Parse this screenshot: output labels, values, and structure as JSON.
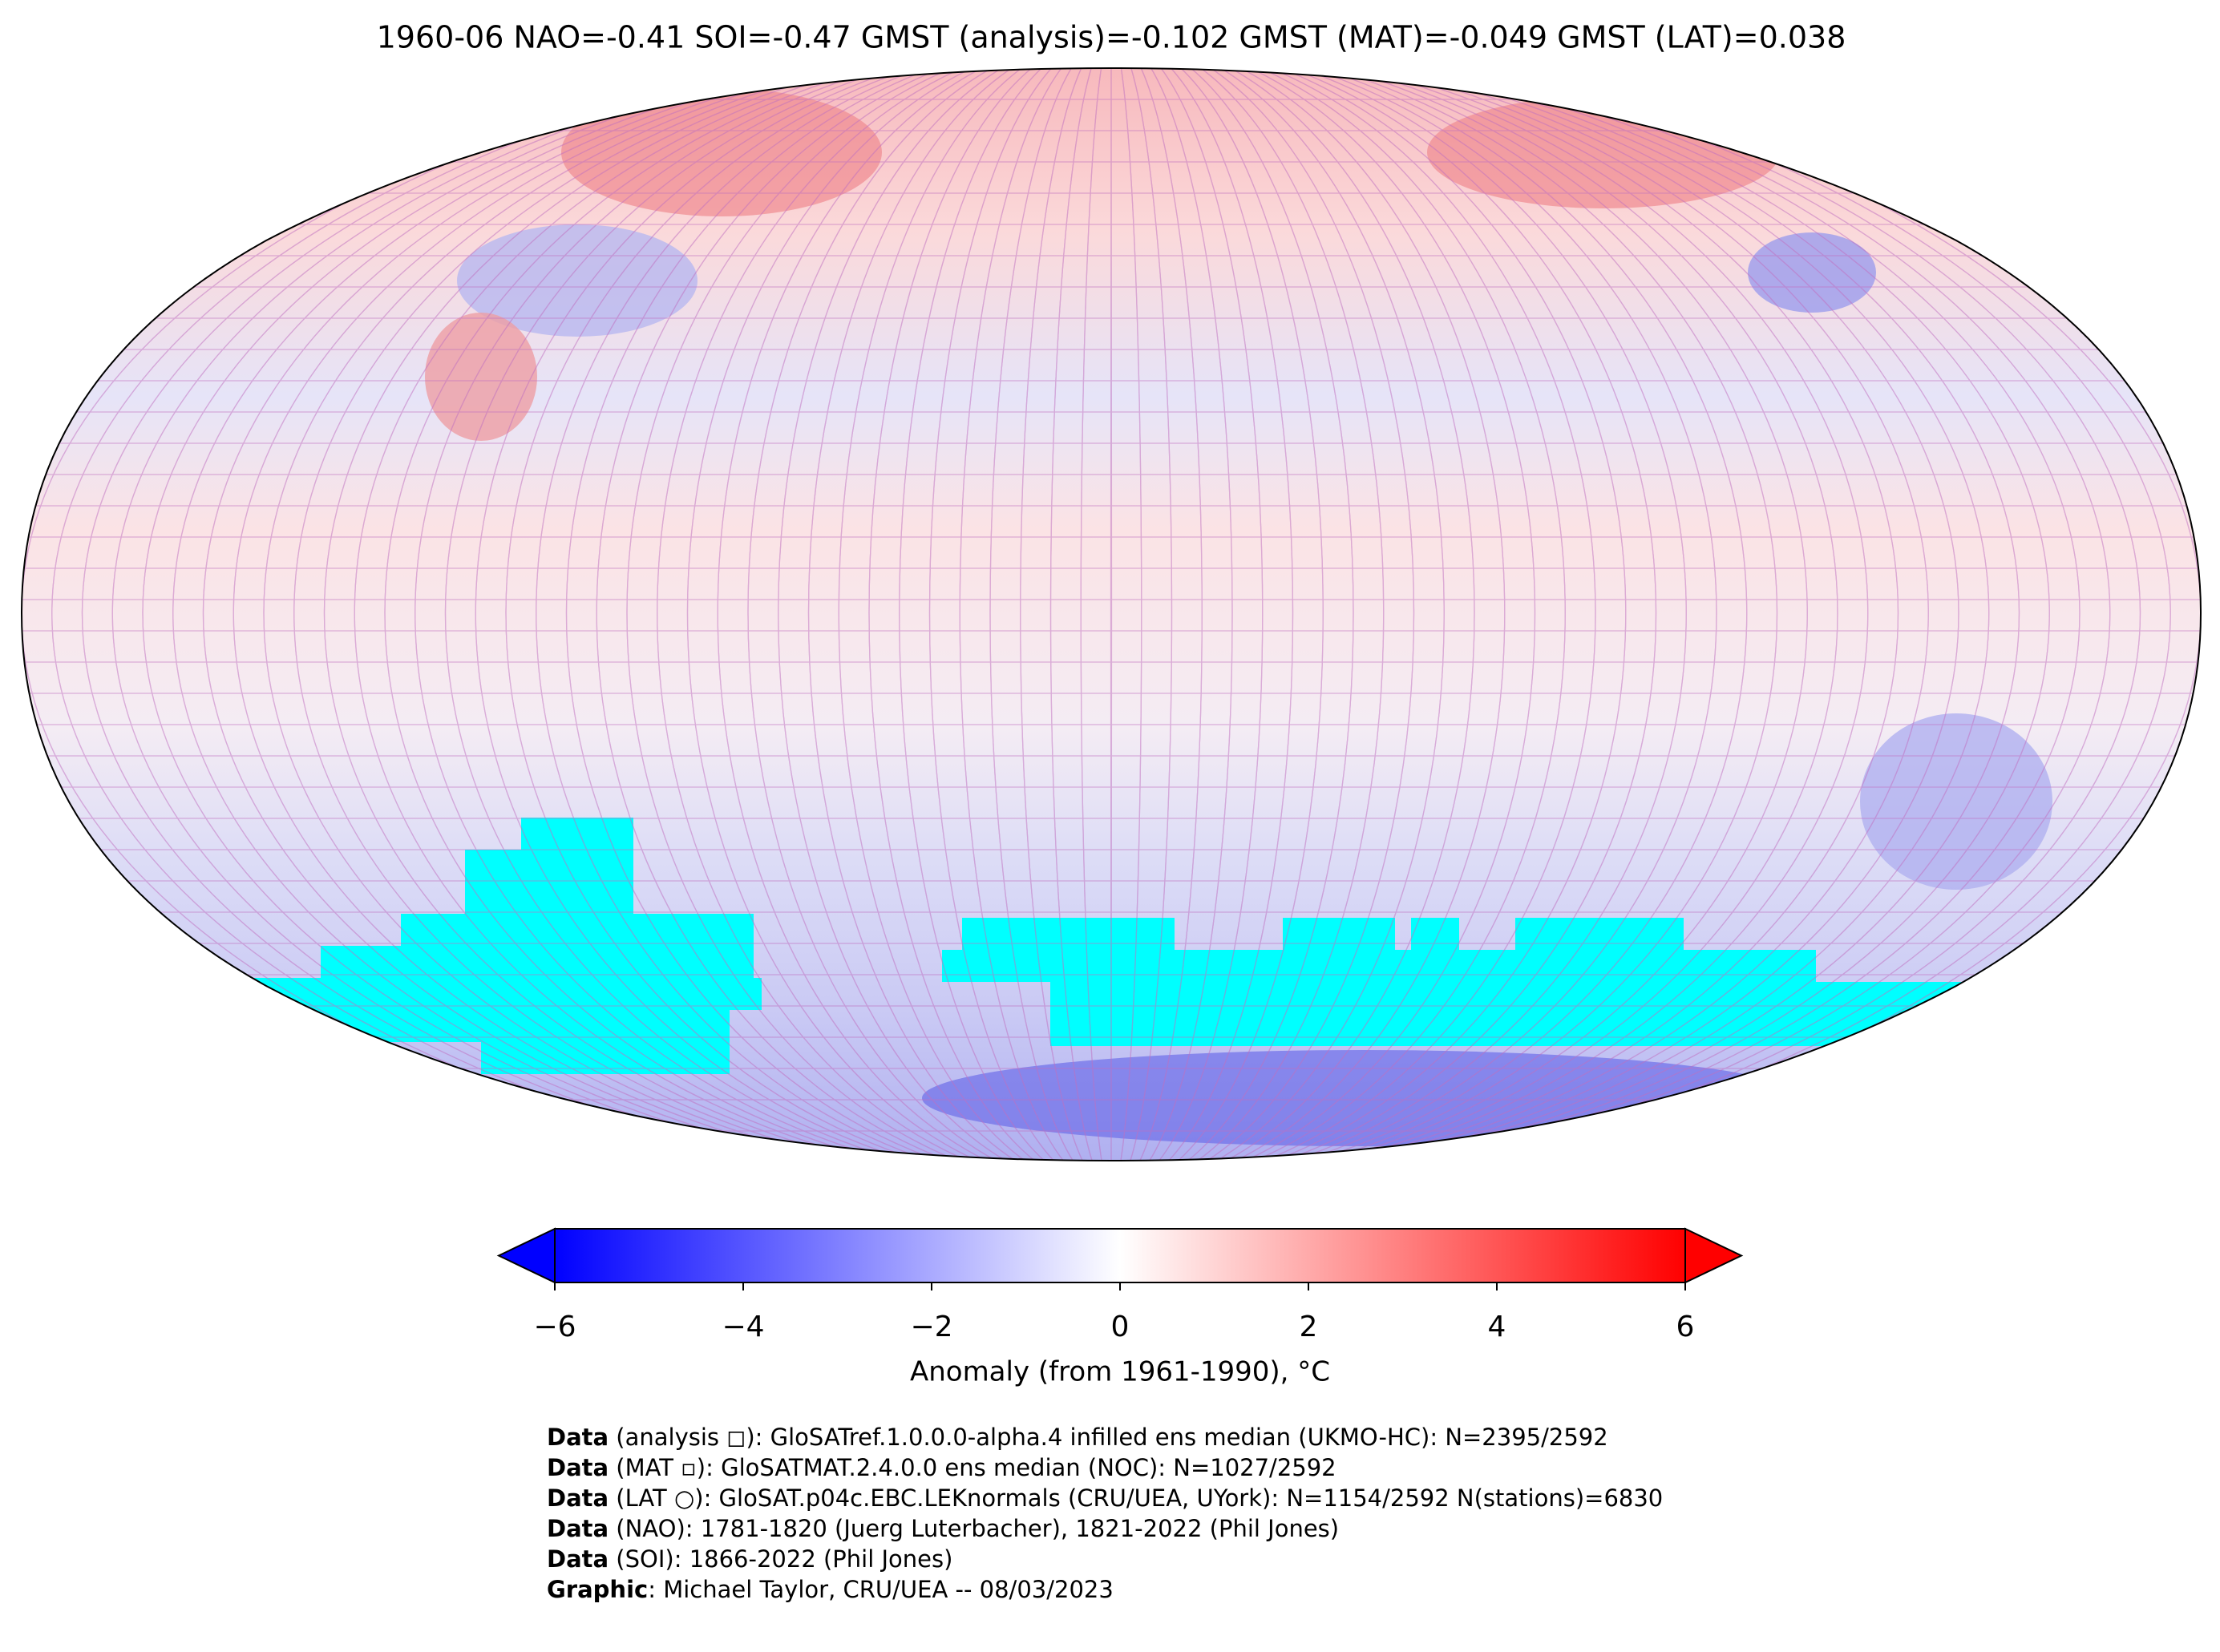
{
  "title": "1960-06 NAO=-0.41 SOI=-0.47 GMST (analysis)=-0.102 GMST (MAT)=-0.049 GMST (LAT)=0.038",
  "colorbar": {
    "label": "Anomaly (from 1961-1990), °C",
    "range": [
      -6,
      6
    ],
    "ticks": [
      {
        "value": -6,
        "label": "−6"
      },
      {
        "value": -4,
        "label": "−4"
      },
      {
        "value": -2,
        "label": "−2"
      },
      0,
      2,
      4,
      6
    ],
    "colors": [
      "#0000ff",
      "#ffffff",
      "#ff0000"
    ]
  },
  "credits": [
    {
      "bold": "Data",
      "text": " (analysis ◻): GloSATref.1.0.0.0-alpha.4 infilled ens median (UKMO-HC): N=2395/2592"
    },
    {
      "bold": "Data",
      "text": " (MAT ▫): GloSATMAT.2.4.0.0 ens median (NOC): N=1027/2592"
    },
    {
      "bold": "Data",
      "text": " (LAT ○): GloSAT.p04c.EBC.LEKnormals (CRU/UEA, UYork): N=1154/2592 N(stations)=6830"
    },
    {
      "bold": "Data",
      "text": " (NAO): 1781-1820 (Juerg Luterbacher), 1821-2022 (Phil Jones)"
    },
    {
      "bold": "Data",
      "text": " (SOI): 1866-2022 (Phil Jones)"
    },
    {
      "bold": "Graphic",
      "text": ": Michael Taylor, CRU/UEA -- 08/03/2023"
    }
  ]
}
